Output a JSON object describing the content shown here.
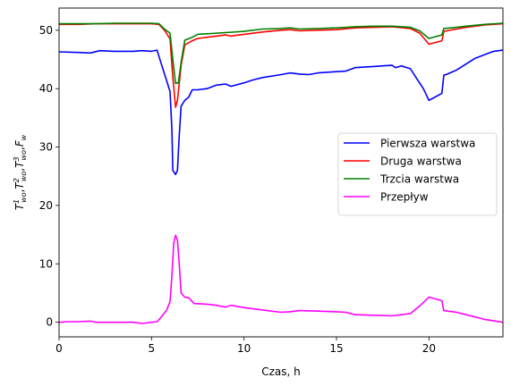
{
  "chart_data": {
    "type": "line",
    "xlabel": "Czas, h",
    "ylabel": "T_wo^1, T_wo^2, T_wo^3, F_w",
    "ylabel_parts": {
      "t1": "T",
      "t1_sup": "1",
      "t1_sub": "wo",
      "t2": "T",
      "t2_sup": "2",
      "t2_sub": "wo",
      "t3": "T",
      "t3_sup": "3",
      "t3_sub": "wo",
      "f": "F",
      "f_sub": "w",
      "sep": ","
    },
    "xlim": [
      0,
      24
    ],
    "ylim": [
      -2.5,
      53.8
    ],
    "xticks": [
      0,
      5,
      10,
      15,
      20
    ],
    "yticks": [
      0,
      10,
      20,
      30,
      40,
      50
    ],
    "grid": false,
    "legend_position": "center-right",
    "series": [
      {
        "name": "Pierwsza warstwa",
        "color": "#0000ff",
        "points": [
          [
            0,
            46.3
          ],
          [
            1,
            46.2
          ],
          [
            1.7,
            46.1
          ],
          [
            2.2,
            46.5
          ],
          [
            3,
            46.4
          ],
          [
            4,
            46.4
          ],
          [
            4.5,
            46.5
          ],
          [
            5,
            46.4
          ],
          [
            5.3,
            46.6
          ],
          [
            5.5,
            44.5
          ],
          [
            5.8,
            41.5
          ],
          [
            6.0,
            39.5
          ],
          [
            6.1,
            33
          ],
          [
            6.15,
            26
          ],
          [
            6.3,
            25.3
          ],
          [
            6.4,
            26
          ],
          [
            6.5,
            32
          ],
          [
            6.6,
            37
          ],
          [
            6.8,
            38
          ],
          [
            7.0,
            38.5
          ],
          [
            7.2,
            39.8
          ],
          [
            7.5,
            39.8
          ],
          [
            8,
            40.0
          ],
          [
            8.5,
            40.6
          ],
          [
            9,
            40.8
          ],
          [
            9.3,
            40.4
          ],
          [
            10,
            41.0
          ],
          [
            10.5,
            41.5
          ],
          [
            11,
            41.9
          ],
          [
            12,
            42.4
          ],
          [
            12.5,
            42.7
          ],
          [
            13,
            42.5
          ],
          [
            13.5,
            42.4
          ],
          [
            14,
            42.7
          ],
          [
            15,
            42.9
          ],
          [
            15.5,
            43.0
          ],
          [
            16,
            43.6
          ],
          [
            17,
            43.8
          ],
          [
            17.5,
            43.9
          ],
          [
            18,
            44.0
          ],
          [
            18.2,
            43.6
          ],
          [
            18.5,
            43.9
          ],
          [
            19,
            43.4
          ],
          [
            19.3,
            41.9
          ],
          [
            19.7,
            40.0
          ],
          [
            20,
            38.0
          ],
          [
            20.3,
            38.5
          ],
          [
            20.7,
            39.2
          ],
          [
            20.8,
            42.3
          ],
          [
            21,
            42.5
          ],
          [
            21.5,
            43.2
          ],
          [
            22,
            44.2
          ],
          [
            22.5,
            45.2
          ],
          [
            23,
            45.8
          ],
          [
            23.5,
            46.4
          ],
          [
            24,
            46.6
          ]
        ]
      },
      {
        "name": "Druga warstwa",
        "color": "#ff0000",
        "points": [
          [
            0,
            51.0
          ],
          [
            1,
            51.0
          ],
          [
            2,
            51.1
          ],
          [
            3,
            51.1
          ],
          [
            4,
            51.1
          ],
          [
            5,
            51.1
          ],
          [
            5.4,
            51.0
          ],
          [
            5.7,
            50.0
          ],
          [
            6.0,
            48.5
          ],
          [
            6.15,
            42
          ],
          [
            6.3,
            36.8
          ],
          [
            6.4,
            38
          ],
          [
            6.6,
            44
          ],
          [
            6.8,
            47.5
          ],
          [
            7.2,
            48.2
          ],
          [
            7.5,
            48.6
          ],
          [
            8,
            48.8
          ],
          [
            8.5,
            49.0
          ],
          [
            9,
            49.2
          ],
          [
            9.3,
            49.0
          ],
          [
            9.5,
            49.1
          ],
          [
            10,
            49.3
          ],
          [
            11,
            49.7
          ],
          [
            12,
            50.0
          ],
          [
            12.5,
            50.1
          ],
          [
            13,
            49.9
          ],
          [
            14,
            50.0
          ],
          [
            15,
            50.1
          ],
          [
            16,
            50.4
          ],
          [
            17,
            50.5
          ],
          [
            18,
            50.6
          ],
          [
            19,
            50.3
          ],
          [
            19.5,
            49.5
          ],
          [
            20,
            47.6
          ],
          [
            20.7,
            48.2
          ],
          [
            20.8,
            49.8
          ],
          [
            21.5,
            50.2
          ],
          [
            22,
            50.5
          ],
          [
            23,
            50.9
          ],
          [
            24,
            51.1
          ]
        ]
      },
      {
        "name": "Trzcia warstwa",
        "color": "#008000",
        "points": [
          [
            0,
            51.1
          ],
          [
            1,
            51.1
          ],
          [
            2,
            51.1
          ],
          [
            3,
            51.2
          ],
          [
            4,
            51.2
          ],
          [
            5,
            51.2
          ],
          [
            5.4,
            51.1
          ],
          [
            5.7,
            50.2
          ],
          [
            6.0,
            49.5
          ],
          [
            6.15,
            45
          ],
          [
            6.3,
            40.9
          ],
          [
            6.45,
            41
          ],
          [
            6.6,
            44.5
          ],
          [
            6.8,
            48.3
          ],
          [
            7.2,
            48.8
          ],
          [
            7.5,
            49.3
          ],
          [
            8,
            49.4
          ],
          [
            9,
            49.6
          ],
          [
            10,
            49.8
          ],
          [
            11,
            50.2
          ],
          [
            12,
            50.3
          ],
          [
            12.5,
            50.4
          ],
          [
            13,
            50.2
          ],
          [
            14,
            50.3
          ],
          [
            15,
            50.4
          ],
          [
            16,
            50.6
          ],
          [
            17,
            50.7
          ],
          [
            18,
            50.7
          ],
          [
            19,
            50.5
          ],
          [
            19.5,
            49.9
          ],
          [
            20,
            48.6
          ],
          [
            20.7,
            49.2
          ],
          [
            20.8,
            50.3
          ],
          [
            21.5,
            50.5
          ],
          [
            22,
            50.7
          ],
          [
            23,
            51.0
          ],
          [
            24,
            51.2
          ]
        ]
      },
      {
        "name": "Przepływ",
        "color": "#ff00ff",
        "points": [
          [
            0,
            0.0
          ],
          [
            0.5,
            0.1
          ],
          [
            1,
            0.1
          ],
          [
            1.7,
            0.2
          ],
          [
            2,
            0.0
          ],
          [
            3,
            0.0
          ],
          [
            4,
            0.0
          ],
          [
            4.5,
            -0.2
          ],
          [
            5,
            0.0
          ],
          [
            5.3,
            0.1
          ],
          [
            5.5,
            0.8
          ],
          [
            5.8,
            2.0
          ],
          [
            6.0,
            3.5
          ],
          [
            6.1,
            8
          ],
          [
            6.2,
            13.5
          ],
          [
            6.3,
            14.9
          ],
          [
            6.4,
            14
          ],
          [
            6.5,
            10
          ],
          [
            6.6,
            5.0
          ],
          [
            6.8,
            4.3
          ],
          [
            7.0,
            4.2
          ],
          [
            7.3,
            3.2
          ],
          [
            8,
            3.1
          ],
          [
            8.5,
            2.9
          ],
          [
            9,
            2.6
          ],
          [
            9.3,
            2.9
          ],
          [
            10,
            2.5
          ],
          [
            11,
            2.1
          ],
          [
            12,
            1.7
          ],
          [
            12.5,
            1.8
          ],
          [
            13,
            2.0
          ],
          [
            14,
            1.9
          ],
          [
            15,
            1.8
          ],
          [
            15.5,
            1.7
          ],
          [
            16,
            1.3
          ],
          [
            17,
            1.2
          ],
          [
            18,
            1.1
          ],
          [
            18.5,
            1.3
          ],
          [
            19,
            1.5
          ],
          [
            19.5,
            2.8
          ],
          [
            20,
            4.3
          ],
          [
            20.7,
            3.7
          ],
          [
            20.8,
            2.0
          ],
          [
            21.5,
            1.7
          ],
          [
            22,
            1.3
          ],
          [
            23,
            0.5
          ],
          [
            24,
            0.0
          ]
        ]
      }
    ]
  }
}
